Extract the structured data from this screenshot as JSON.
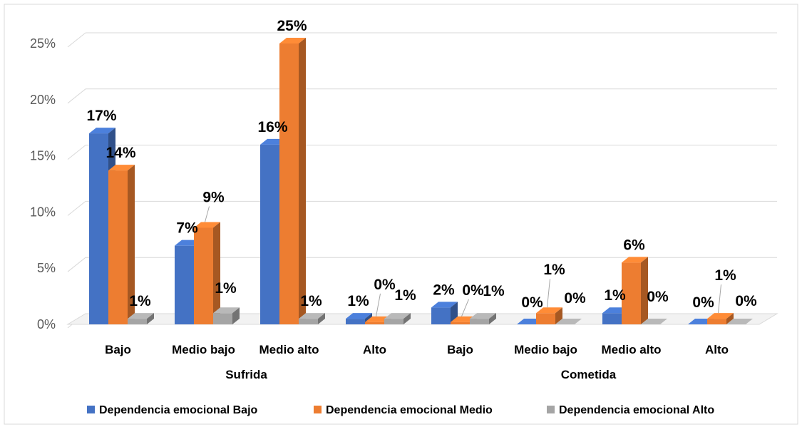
{
  "chart_data": {
    "type": "bar",
    "subtype": "clustered-3d-column",
    "groups": [
      {
        "label": "Sufrida",
        "categories": [
          "Bajo",
          "Medio bajo",
          "Medio alto",
          "Alto"
        ]
      },
      {
        "label": "Cometida",
        "categories": [
          "Bajo",
          "Medio bajo",
          "Medio alto",
          "Alto"
        ]
      }
    ],
    "categories": [
      "Bajo",
      "Medio bajo",
      "Medio alto",
      "Alto",
      "Bajo",
      "Medio bajo",
      "Medio alto",
      "Alto"
    ],
    "series": [
      {
        "name": "Dependencia emocional Bajo",
        "color": "#4472C4",
        "values": [
          17,
          7,
          16,
          0.5,
          1.5,
          0,
          1,
          0
        ],
        "labels": [
          "17%",
          "7%",
          "16%",
          "1%",
          "2%",
          "0%",
          "1%",
          "0%"
        ]
      },
      {
        "name": "Dependencia emocional Medio",
        "color": "#ED7D31",
        "values": [
          13.7,
          8.6,
          25,
          0.2,
          0.2,
          1,
          5.5,
          0.5
        ],
        "labels": [
          "14%",
          "9%",
          "25%",
          "0%",
          "0%",
          "1%",
          "6%",
          "1%"
        ]
      },
      {
        "name": "Dependencia emocional Alto",
        "color": "#A5A5A5",
        "values": [
          0.5,
          1,
          0.5,
          0.5,
          0.5,
          0,
          0,
          0
        ],
        "labels": [
          "1%",
          "1%",
          "1%",
          "1%",
          "1%",
          "0%",
          "0%",
          "0%"
        ]
      }
    ],
    "yticks": [
      "0%",
      "5%",
      "10%",
      "15%",
      "20%",
      "25%"
    ],
    "ylim": [
      0,
      25
    ],
    "grid": true,
    "legend": "bottom",
    "xlabel": "",
    "ylabel": "",
    "title": ""
  }
}
